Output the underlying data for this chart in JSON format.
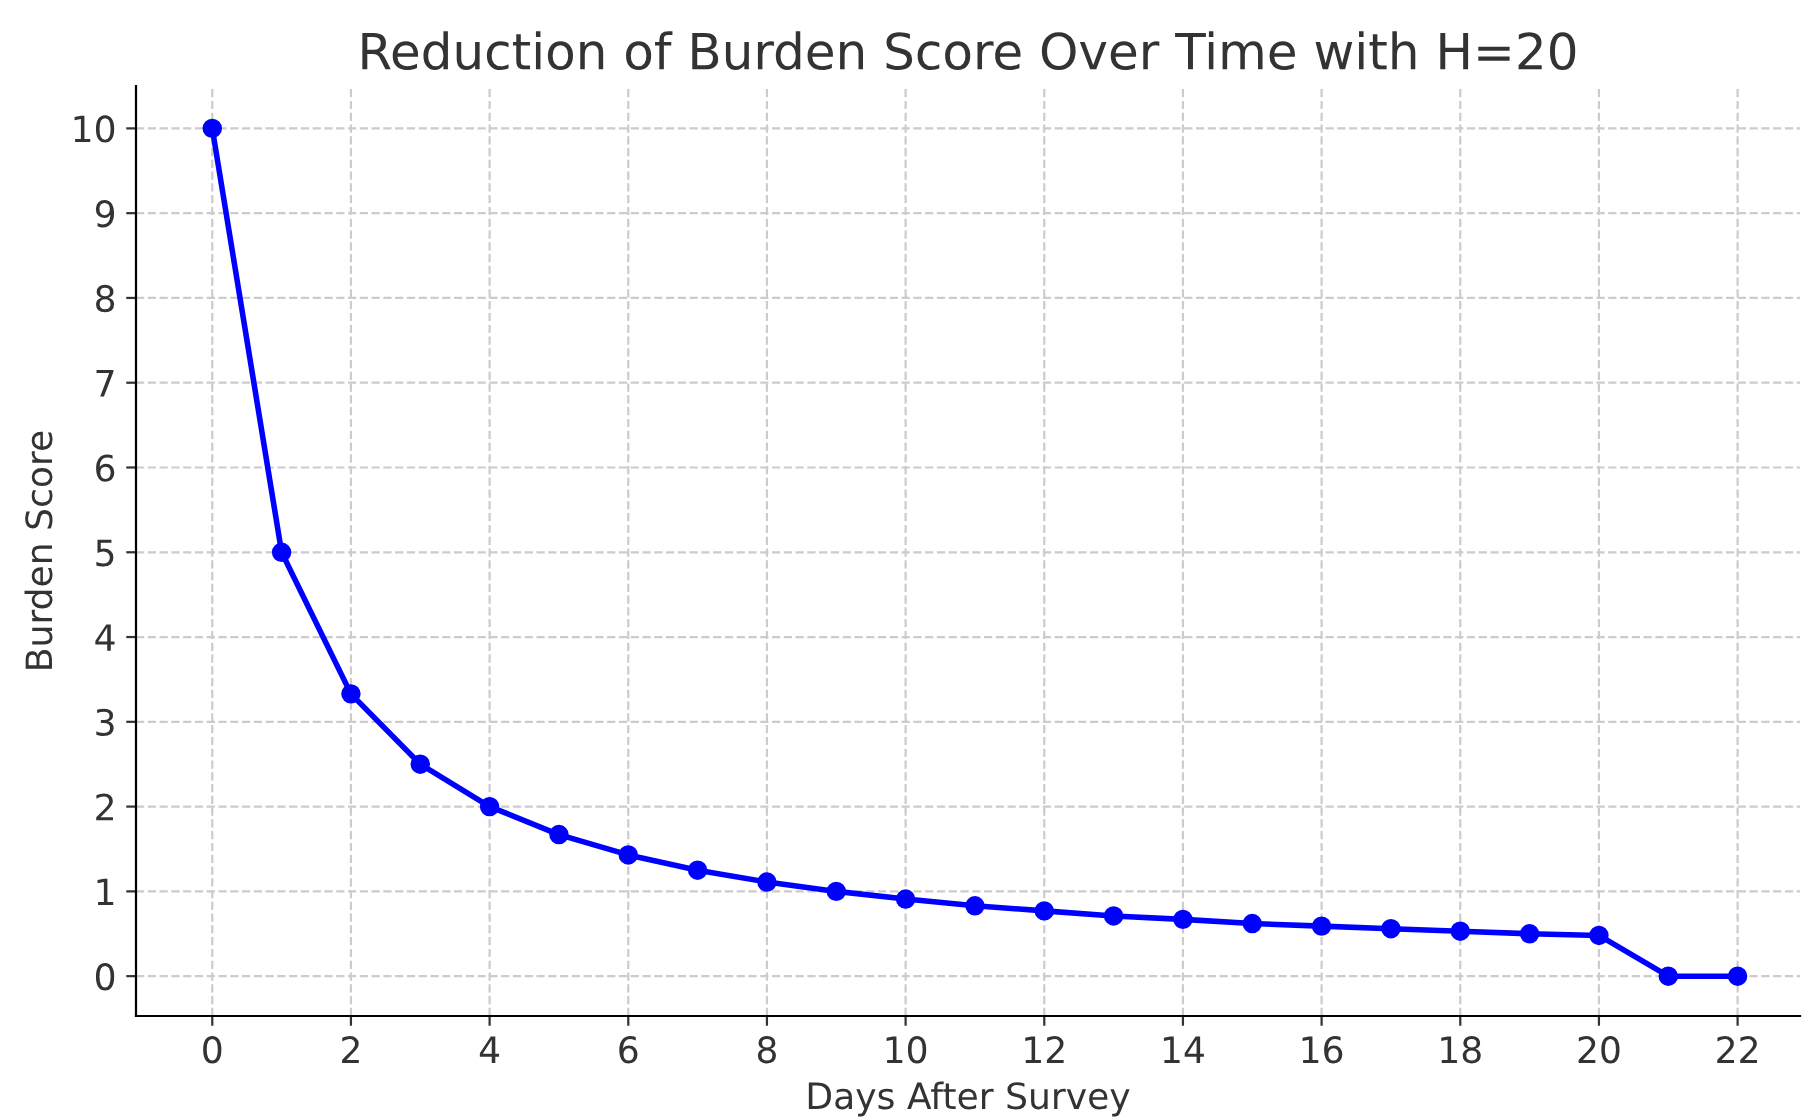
{
  "chart_data": {
    "type": "line",
    "title": "Reduction of Burden Score Over Time with H=20",
    "xlabel": "Days After Survey",
    "ylabel": "Burden Score",
    "x": [
      0,
      1,
      2,
      3,
      4,
      5,
      6,
      7,
      8,
      9,
      10,
      11,
      12,
      13,
      14,
      15,
      16,
      17,
      18,
      19,
      20,
      21,
      22
    ],
    "series": [
      {
        "color": "#0000ff",
        "values": [
          10,
          5,
          3.33,
          2.5,
          2,
          1.67,
          1.43,
          1.25,
          1.11,
          1.0,
          0.91,
          0.83,
          0.77,
          0.71,
          0.67,
          0.62,
          0.59,
          0.56,
          0.53,
          0.5,
          0.48,
          0,
          0
        ]
      }
    ],
    "xlim": [
      -1.1,
      22.9
    ],
    "ylim": [
      -0.47,
      10.5
    ],
    "xticks": [
      0,
      2,
      4,
      6,
      8,
      10,
      12,
      14,
      16,
      18,
      20,
      22
    ],
    "yticks": [
      0,
      1,
      2,
      3,
      4,
      5,
      6,
      7,
      8,
      9,
      10
    ],
    "grid": true,
    "marker": "circle",
    "line_style": "solid"
  }
}
